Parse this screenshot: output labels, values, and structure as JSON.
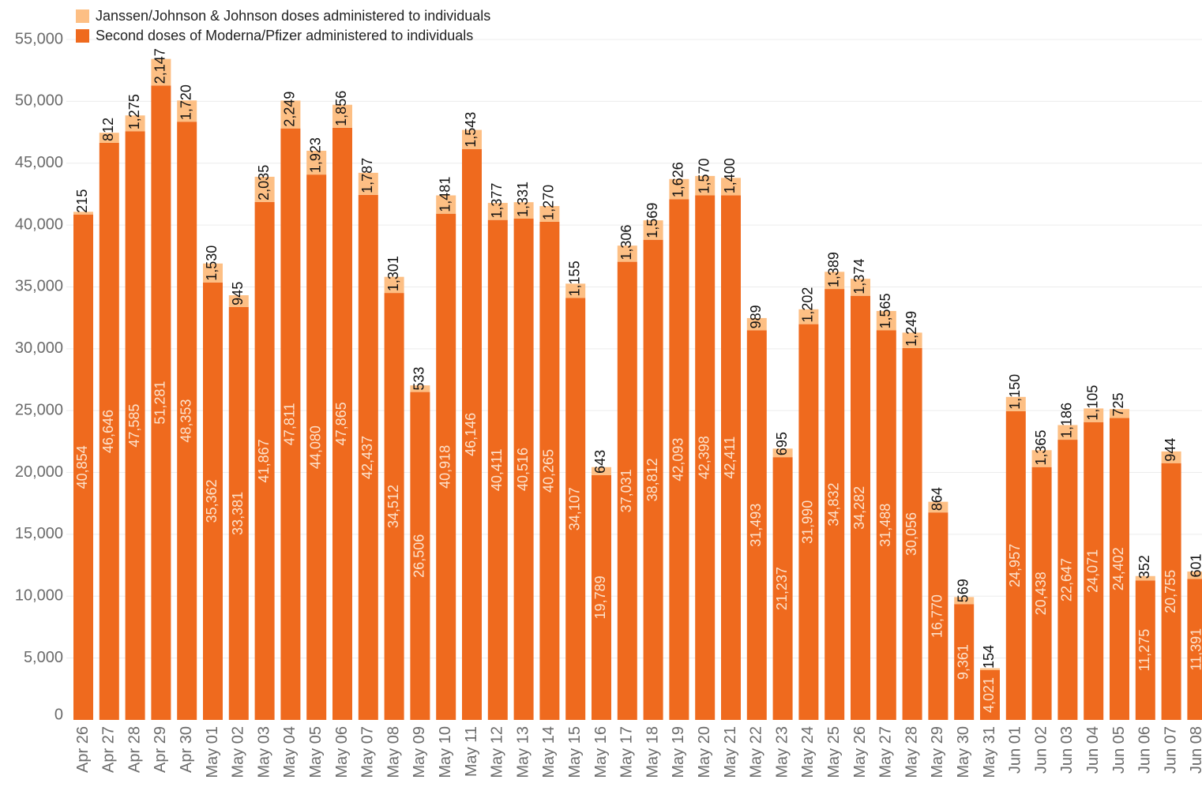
{
  "legend": {
    "jj_label": "Janssen/Johnson & Johnson doses administered to individuals",
    "second_label": "Second doses of Moderna/Pfizer administered to individuals"
  },
  "colors": {
    "jj": "#fdbf84",
    "second": "#ef6a1e",
    "grid": "#ececec",
    "tick_text": "#6b6b6b",
    "label_dark": "#111111",
    "label_light": "#fde3cc"
  },
  "chart_data": {
    "type": "bar",
    "stacked": true,
    "title": "",
    "xlabel": "",
    "ylabel": "",
    "ylim": [
      0,
      55000
    ],
    "y_ticks": [
      "0",
      "5,000",
      "10,000",
      "15,000",
      "20,000",
      "25,000",
      "30,000",
      "35,000",
      "40,000",
      "45,000",
      "50,000",
      "55,000"
    ],
    "grid": true,
    "legend_position": "top-left",
    "categories": [
      "Apr 26",
      "Apr 27",
      "Apr 28",
      "Apr 29",
      "Apr 30",
      "May 01",
      "May 02",
      "May 03",
      "May 04",
      "May 05",
      "May 06",
      "May 07",
      "May 08",
      "May 09",
      "May 10",
      "May 11",
      "May 12",
      "May 13",
      "May 14",
      "May 15",
      "May 16",
      "May 17",
      "May 18",
      "May 19",
      "May 20",
      "May 21",
      "May 22",
      "May 23",
      "May 24",
      "May 25",
      "May 26",
      "May 27",
      "May 28",
      "May 29",
      "May 30",
      "May 31",
      "Jun 01",
      "Jun 02",
      "Jun 03",
      "Jun 04",
      "Jun 05",
      "Jun 06",
      "Jun 07",
      "Jun 08"
    ],
    "series": [
      {
        "name": "Second doses of Moderna/Pfizer administered to individuals",
        "values": [
          40854,
          46646,
          47585,
          51281,
          48353,
          35362,
          33381,
          41867,
          47811,
          44080,
          47865,
          42437,
          34512,
          26506,
          40918,
          46146,
          40411,
          40516,
          40265,
          34107,
          19789,
          37031,
          38812,
          42093,
          42398,
          42411,
          31493,
          21237,
          31990,
          34832,
          34282,
          31488,
          30056,
          16770,
          9361,
          4021,
          24957,
          20438,
          22647,
          24071,
          24402,
          11275,
          20755,
          11391
        ],
        "labels": [
          "40,854",
          "46,646",
          "47,585",
          "51,281",
          "48,353",
          "35,362",
          "33,381",
          "41,867",
          "47,811",
          "44,080",
          "47,865",
          "42,437",
          "34,512",
          "26,506",
          "40,918",
          "46,146",
          "40,411",
          "40,516",
          "40,265",
          "34,107",
          "19,789",
          "37,031",
          "38,812",
          "42,093",
          "42,398",
          "42,411",
          "31,493",
          "21,237",
          "31,990",
          "34,832",
          "34,282",
          "31,488",
          "30,056",
          "16,770",
          "9,361",
          "4,021",
          "24,957",
          "20,438",
          "22,647",
          "24,071",
          "24,402",
          "11,275",
          "20,755",
          "11,391"
        ]
      },
      {
        "name": "Janssen/Johnson & Johnson doses administered to individuals",
        "values": [
          215,
          812,
          1275,
          2147,
          1720,
          1530,
          945,
          2035,
          2249,
          1923,
          1856,
          1787,
          1301,
          533,
          1481,
          1543,
          1377,
          1331,
          1270,
          1155,
          643,
          1306,
          1569,
          1626,
          1570,
          1400,
          989,
          695,
          1202,
          1389,
          1374,
          1565,
          1249,
          864,
          569,
          154,
          1150,
          1365,
          1186,
          1105,
          725,
          352,
          944,
          601
        ],
        "labels": [
          "215",
          "812",
          "1,275",
          "2,147",
          "1,720",
          "1,530",
          "945",
          "2,035",
          "2,249",
          "1,923",
          "1,856",
          "1,787",
          "1,301",
          "533",
          "1,481",
          "1,543",
          "1,377",
          "1,331",
          "1,270",
          "1,155",
          "643",
          "1,306",
          "1,569",
          "1,626",
          "1,570",
          "1,400",
          "989",
          "695",
          "1,202",
          "1,389",
          "1,374",
          "1,565",
          "1,249",
          "864",
          "569",
          "154",
          "1,150",
          "1,365",
          "1,186",
          "1,105",
          "725",
          "352",
          "944",
          "601"
        ]
      }
    ]
  }
}
